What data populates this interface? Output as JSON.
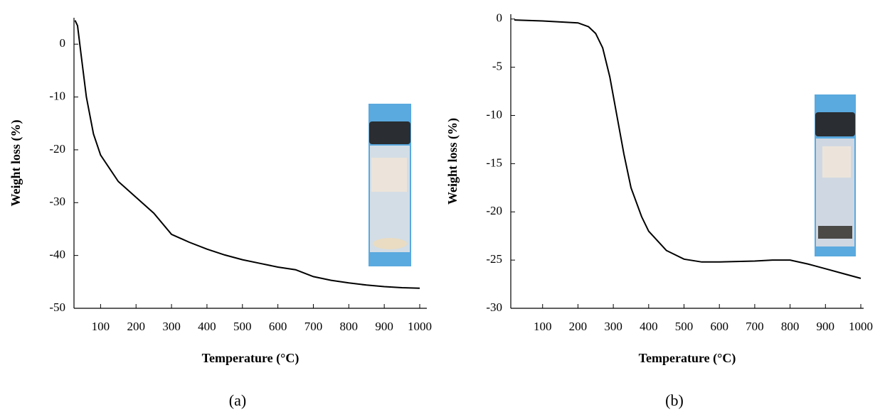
{
  "chart_data": [
    {
      "type": "line",
      "panel_label": "(a)",
      "xlabel": "Temperature (°C)",
      "ylabel": "Weight loss (%)",
      "color": "#000000",
      "x": [
        28,
        35,
        45,
        60,
        80,
        100,
        150,
        200,
        250,
        300,
        350,
        400,
        450,
        500,
        550,
        600,
        650,
        700,
        750,
        800,
        850,
        900,
        950,
        1000
      ],
      "values": [
        4.5,
        3.5,
        -2,
        -10,
        -17,
        -21,
        -26,
        -29,
        -32,
        -36,
        -37.5,
        -38.8,
        -39.9,
        -40.8,
        -41.5,
        -42.2,
        -42.7,
        -44,
        -44.7,
        -45.2,
        -45.6,
        -45.9,
        -46.1,
        -46.2
      ],
      "xlim": [
        25,
        1000
      ],
      "ylim": [
        -50,
        5
      ],
      "xticks": [
        100,
        200,
        300,
        400,
        500,
        600,
        700,
        800,
        900,
        1000
      ],
      "yticks": [
        0,
        -10,
        -20,
        -30,
        -40,
        -50
      ]
    },
    {
      "type": "line",
      "panel_label": "(b)",
      "xlabel": "Temperature (°C)",
      "ylabel": "Weight loss (%)",
      "color": "#000000",
      "x": [
        20,
        100,
        150,
        200,
        230,
        250,
        270,
        290,
        310,
        330,
        350,
        380,
        400,
        450,
        500,
        550,
        600,
        700,
        750,
        800,
        850,
        900,
        950,
        1000
      ],
      "values": [
        -0.1,
        -0.2,
        -0.3,
        -0.4,
        -0.8,
        -1.5,
        -3,
        -6,
        -10,
        -14,
        -17.5,
        -20.5,
        -22,
        -24,
        -24.9,
        -25.2,
        -25.2,
        -25.1,
        -25,
        -25,
        -25.4,
        -25.9,
        -26.4,
        -26.9
      ],
      "xlim": [
        10,
        1000
      ],
      "ylim": [
        -30,
        0.5
      ],
      "xticks": [
        100,
        200,
        300,
        400,
        500,
        600,
        700,
        800,
        900,
        1000
      ],
      "yticks": [
        0,
        -5,
        -10,
        -15,
        -20,
        -25,
        -30
      ]
    }
  ]
}
